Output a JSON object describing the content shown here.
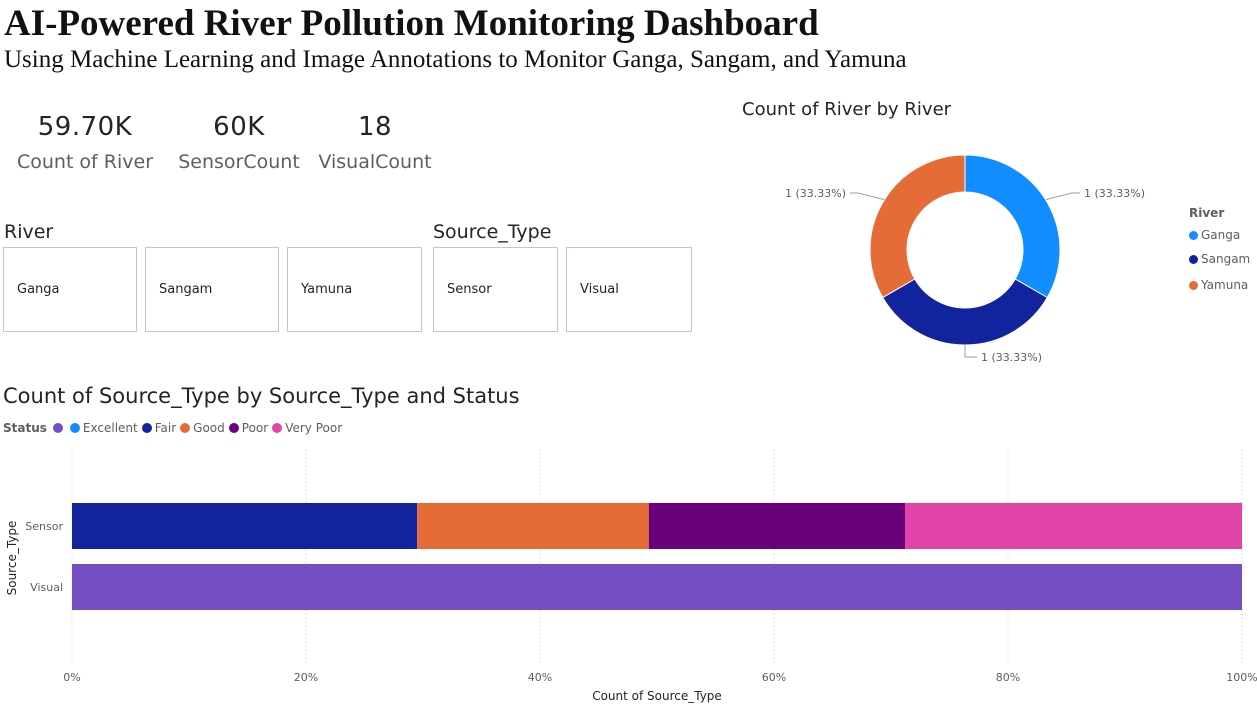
{
  "header": {
    "title": "AI-Powered River Pollution Monitoring Dashboard",
    "subtitle": "Using Machine Learning and Image Annotations to Monitor Ganga, Sangam, and Yamuna"
  },
  "kpis": [
    {
      "value": "59.70K",
      "label": "Count of River"
    },
    {
      "value": "60K",
      "label": "SensorCount"
    },
    {
      "value": "18",
      "label": "VisualCount"
    }
  ],
  "slicers": {
    "river": {
      "title": "River",
      "items": [
        "Ganga",
        "Sangam",
        "Yamuna"
      ]
    },
    "source_type": {
      "title": "Source_Type",
      "items": [
        "Sensor",
        "Visual"
      ]
    }
  },
  "colors": {
    "ganga": "#118dff",
    "sangam": "#12239e",
    "yamuna": "#e66c37",
    "excellent": "#118dff",
    "fair": "#12239e",
    "good": "#e66c37",
    "poor": "#6b007b",
    "very_poor": "#e044a7",
    "visual_blank": "#744ec2"
  },
  "chart_data": [
    {
      "type": "pie",
      "title": "Count of River by River",
      "legend_title": "River",
      "legend_position": "right",
      "categories": [
        "Ganga",
        "Sangam",
        "Yamuna"
      ],
      "values": [
        1,
        1,
        1
      ],
      "data_labels": [
        "1 (33.33%)",
        "1 (33.33%)",
        "1 (33.33%)"
      ]
    },
    {
      "type": "bar",
      "stacked": "100%",
      "orientation": "horizontal",
      "title": "Count of Source_Type by Source_Type and Status",
      "legend_title": "Status",
      "legend_position": "top-left",
      "xlabel": "Count of Source_Type",
      "ylabel": "Source_Type",
      "xlim": [
        0,
        100
      ],
      "x_ticks": [
        "0%",
        "20%",
        "40%",
        "60%",
        "80%",
        "100%"
      ],
      "categories": [
        "Sensor",
        "Visual"
      ],
      "series": [
        {
          "name": "",
          "values": [
            0,
            100
          ]
        },
        {
          "name": "Excellent",
          "values": [
            0,
            0
          ]
        },
        {
          "name": "Fair",
          "values": [
            29.5,
            0
          ]
        },
        {
          "name": "Good",
          "values": [
            19.8,
            0
          ]
        },
        {
          "name": "Poor",
          "values": [
            21.9,
            0
          ]
        },
        {
          "name": "Very Poor",
          "values": [
            28.8,
            0
          ]
        }
      ],
      "grid": true
    }
  ]
}
